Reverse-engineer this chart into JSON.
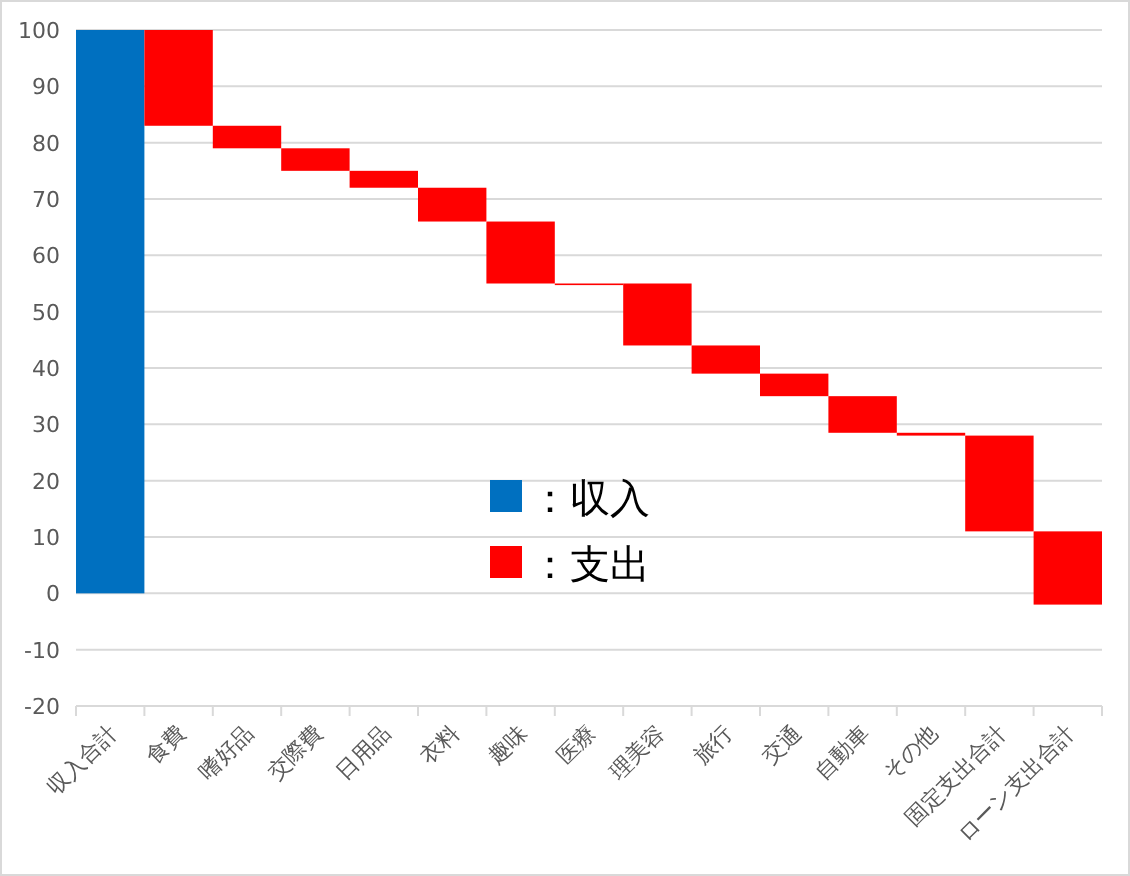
{
  "chart_data": {
    "type": "bar",
    "categories": [
      "収入合計",
      "食費",
      "嗜好品",
      "交際費",
      "日用品",
      "衣料",
      "趣味",
      "医療",
      "理美容",
      "旅行",
      "交通",
      "自動車",
      "その他",
      "固定支出合計",
      "ローン支出合計"
    ],
    "series": [
      {
        "name": "：収入",
        "color": "#0070c0",
        "values": [
          100,
          null,
          null,
          null,
          null,
          null,
          null,
          null,
          null,
          null,
          null,
          null,
          null,
          null,
          null
        ]
      },
      {
        "name": "：支出",
        "color": "#ff0000",
        "base": [
          null,
          83,
          79,
          75,
          72,
          66,
          55,
          55,
          44,
          39,
          35,
          28.5,
          28,
          11,
          -2
        ],
        "values": [
          null,
          17,
          4,
          4,
          3,
          6,
          11,
          0,
          11,
          5,
          4,
          6.5,
          0.5,
          17,
          13
        ]
      }
    ],
    "ylim": [
      -20,
      100
    ],
    "yticks": [
      -20,
      -10,
      0,
      10,
      20,
      30,
      40,
      50,
      60,
      70,
      80,
      90,
      100
    ],
    "grid": "y",
    "legend": "center"
  }
}
